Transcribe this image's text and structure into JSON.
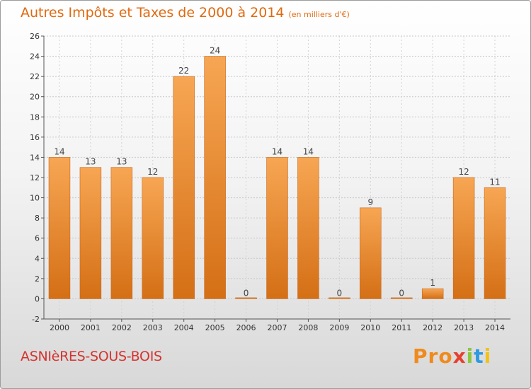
{
  "chart_data": {
    "type": "bar",
    "title": "Autres Impôts et Taxes de 2000 à 2014",
    "subtitle": "(en milliers d'€)",
    "categories": [
      "2000",
      "2001",
      "2002",
      "2003",
      "2004",
      "2005",
      "2006",
      "2007",
      "2008",
      "2009",
      "2010",
      "2011",
      "2012",
      "2013",
      "2014"
    ],
    "values": [
      14,
      13,
      13,
      12,
      22,
      24,
      0,
      14,
      14,
      0,
      9,
      0,
      1,
      12,
      11
    ],
    "ylim": [
      -2,
      26
    ],
    "yticks": [
      -2,
      0,
      2,
      4,
      6,
      8,
      10,
      12,
      14,
      16,
      18,
      20,
      22,
      24,
      26
    ],
    "grid": true,
    "bar_color": "#f08d30"
  },
  "footer": {
    "city": "ASNIèRES-SOUS-BOIS",
    "logo": [
      "Pro",
      "x",
      "i",
      "t",
      "i"
    ]
  }
}
